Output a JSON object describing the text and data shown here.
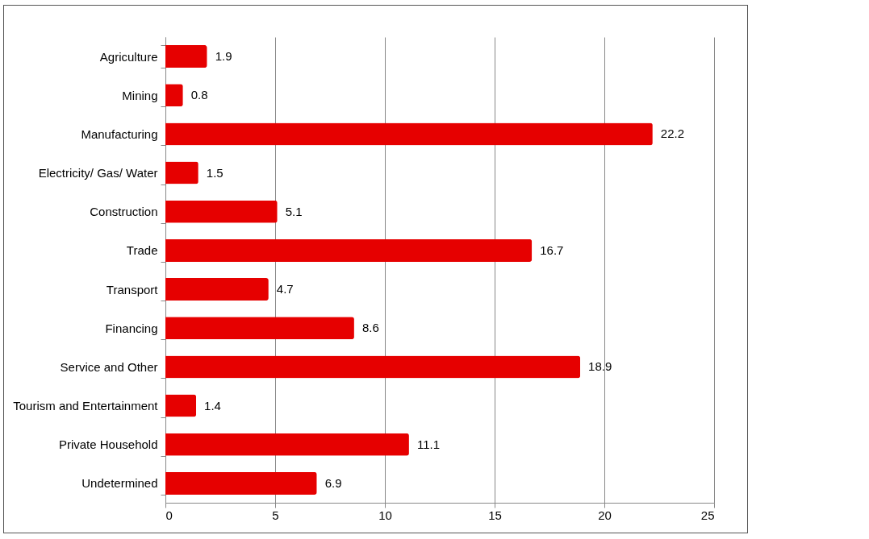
{
  "chart_data": {
    "type": "bar",
    "orientation": "horizontal",
    "categories": [
      "Agriculture",
      "Mining",
      "Manufacturing",
      "Electricity/ Gas/ Water",
      "Construction",
      "Trade",
      "Transport",
      "Financing",
      "Service and Other",
      "Tourism and Entertainment",
      "Private Household",
      "Undetermined"
    ],
    "values": [
      1.9,
      0.8,
      22.2,
      1.5,
      5.1,
      16.7,
      4.7,
      8.6,
      18.9,
      1.4,
      11.1,
      6.9
    ],
    "color": "#e60000",
    "xlim": [
      0,
      25
    ],
    "xticks": [
      0,
      5,
      10,
      15,
      20,
      25
    ],
    "grid": "x",
    "data_labels": true
  }
}
